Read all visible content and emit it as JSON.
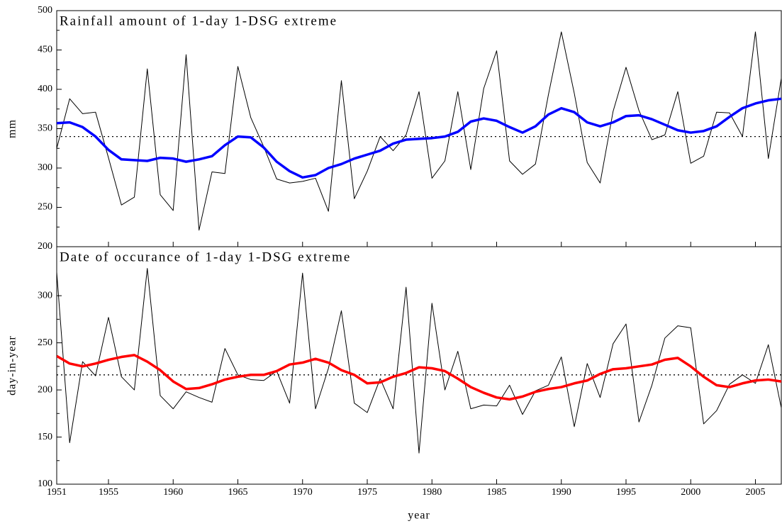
{
  "chart_data": [
    {
      "type": "line",
      "title": "Rainfall amount of 1-day 1-DSG extreme",
      "y_label": "mm",
      "x": [
        1951,
        1952,
        1953,
        1954,
        1955,
        1956,
        1957,
        1958,
        1959,
        1960,
        1961,
        1962,
        1963,
        1964,
        1965,
        1966,
        1967,
        1968,
        1969,
        1970,
        1971,
        1972,
        1973,
        1974,
        1975,
        1976,
        1977,
        1978,
        1979,
        1980,
        1981,
        1982,
        1983,
        1984,
        1985,
        1986,
        1987,
        1988,
        1989,
        1990,
        1991,
        1992,
        1993,
        1994,
        1995,
        1996,
        1997,
        1998,
        1999,
        2000,
        2001,
        2002,
        2003,
        2004,
        2005,
        2006,
        2007
      ],
      "xlim": [
        1951,
        2007
      ],
      "ylim": [
        200,
        500
      ],
      "yticks": [
        200,
        250,
        300,
        350,
        400,
        450,
        500
      ],
      "reference_line": 340,
      "series": [
        {
          "color": "#000000",
          "values": [
            325,
            388,
            369,
            371,
            313,
            253,
            263,
            426,
            266,
            246,
            444,
            221,
            295,
            293,
            429,
            364,
            327,
            286,
            281,
            283,
            287,
            245,
            411,
            261,
            296,
            340,
            322,
            342,
            397,
            287,
            309,
            397,
            298,
            401,
            449,
            309,
            292,
            305,
            393,
            473,
            395,
            307,
            281,
            372,
            428,
            373,
            336,
            342,
            397,
            306,
            315,
            371,
            370,
            340,
            473,
            312,
            414
          ]
        },
        {
          "color": "#0000ff",
          "values": [
            357,
            358,
            352,
            340,
            323,
            311,
            310,
            309,
            313,
            312,
            308,
            311,
            315,
            329,
            340,
            339,
            326,
            308,
            296,
            288,
            291,
            300,
            305,
            312,
            317,
            322,
            331,
            336,
            337,
            338,
            340,
            346,
            359,
            363,
            360,
            352,
            345,
            353,
            368,
            376,
            371,
            358,
            353,
            358,
            366,
            367,
            362,
            355,
            348,
            345,
            347,
            353,
            365,
            376,
            382,
            386,
            388
          ]
        }
      ]
    },
    {
      "type": "line",
      "title": "Date of occurance of 1-day 1-DSG extreme",
      "y_label": "day-in-year",
      "x_label": "year",
      "x": [
        1951,
        1952,
        1953,
        1954,
        1955,
        1956,
        1957,
        1958,
        1959,
        1960,
        1961,
        1962,
        1963,
        1964,
        1965,
        1966,
        1967,
        1968,
        1969,
        1970,
        1971,
        1972,
        1973,
        1974,
        1975,
        1976,
        1977,
        1978,
        1979,
        1980,
        1981,
        1982,
        1983,
        1984,
        1985,
        1986,
        1987,
        1988,
        1989,
        1990,
        1991,
        1992,
        1993,
        1994,
        1995,
        1996,
        1997,
        1998,
        1999,
        2000,
        2001,
        2002,
        2003,
        2004,
        2005,
        2006,
        2007
      ],
      "xlim": [
        1951,
        2007
      ],
      "xticks": [
        1951,
        1955,
        1960,
        1965,
        1970,
        1975,
        1980,
        1985,
        1990,
        1995,
        2000,
        2005
      ],
      "ylim": [
        100,
        352
      ],
      "yticks": [
        100,
        150,
        200,
        250,
        300
      ],
      "reference_line": 216,
      "series": [
        {
          "color": "#000000",
          "values": [
            325,
            144,
            230,
            215,
            277,
            214,
            200,
            329,
            194,
            180,
            198,
            192,
            187,
            244,
            216,
            211,
            210,
            220,
            186,
            324,
            180,
            223,
            284,
            186,
            176,
            212,
            180,
            309,
            133,
            292,
            200,
            241,
            180,
            184,
            183,
            205,
            174,
            199,
            205,
            235,
            161,
            228,
            192,
            249,
            270,
            166,
            205,
            255,
            268,
            266,
            164,
            178,
            206,
            216,
            207,
            248,
            181
          ]
        },
        {
          "color": "#ff0000",
          "values": [
            236,
            228,
            225,
            228,
            232,
            235,
            237,
            230,
            221,
            209,
            201,
            202,
            206,
            211,
            214,
            216,
            216,
            220,
            227,
            229,
            233,
            229,
            221,
            216,
            207,
            208,
            214,
            218,
            224,
            223,
            220,
            212,
            203,
            197,
            192,
            190,
            193,
            198,
            201,
            203,
            207,
            210,
            217,
            222,
            223,
            225,
            227,
            232,
            234,
            225,
            214,
            205,
            203,
            207,
            210,
            211,
            209
          ]
        }
      ]
    }
  ]
}
